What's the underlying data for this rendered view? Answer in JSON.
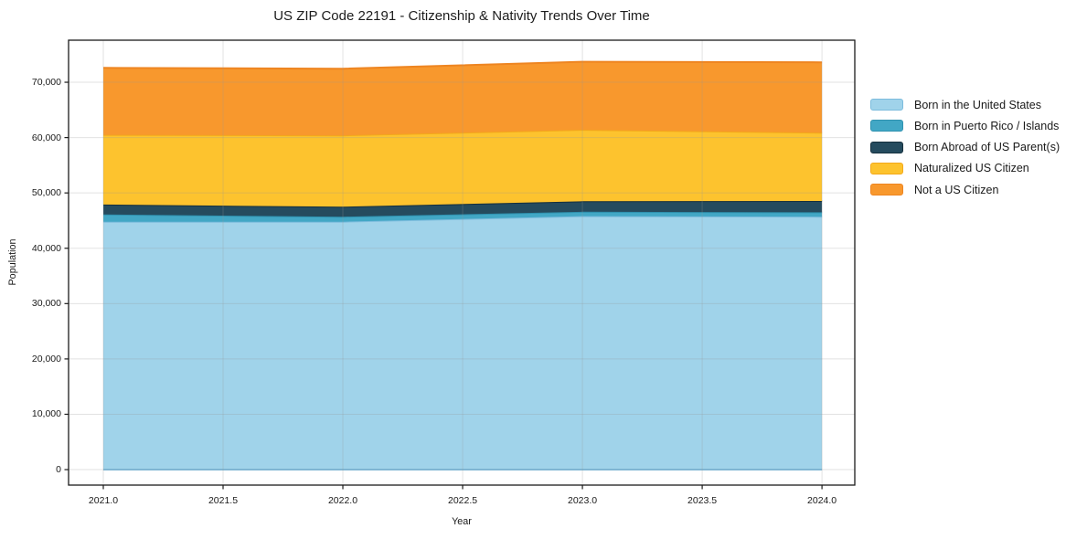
{
  "chart_data": {
    "type": "area",
    "stacked": true,
    "title": "US ZIP Code 22191 - Citizenship & Nativity Trends Over Time",
    "xlabel": "Year",
    "ylabel": "Population",
    "grid": true,
    "legend_position": "right-outside",
    "x": [
      2021,
      2022,
      2023,
      2024
    ],
    "xlim": [
      2020.855,
      2024.137
    ],
    "ylim": [
      -2800,
      77600
    ],
    "xticks": {
      "values": [
        2021.0,
        2021.5,
        2022.0,
        2022.5,
        2023.0,
        2023.5,
        2024.0
      ],
      "labels": [
        "2021.0",
        "2021.5",
        "2022.0",
        "2022.5",
        "2023.0",
        "2023.5",
        "2024.0"
      ]
    },
    "yticks": {
      "values": [
        0,
        10000,
        20000,
        30000,
        40000,
        50000,
        60000,
        70000
      ],
      "labels": [
        "0",
        "10,000",
        "20,000",
        "30,000",
        "40,000",
        "50,000",
        "60,000",
        "70,000"
      ]
    },
    "series": [
      {
        "name": "Born in the United States",
        "color": "#a0d3ea",
        "edge": "#7cbcdd",
        "values": [
          44800,
          44800,
          45800,
          45700
        ]
      },
      {
        "name": "Born in Puerto Rico / Islands",
        "color": "#42a7c5",
        "edge": "#2f92b0",
        "values": [
          1300,
          900,
          800,
          800
        ]
      },
      {
        "name": "Born Abroad of US Parent(s)",
        "color": "#254b5e",
        "edge": "#152f3d",
        "values": [
          1800,
          1800,
          1900,
          2050
        ]
      },
      {
        "name": "Naturalized US Citizen",
        "color": "#fdc32e",
        "edge": "#f3a91a",
        "values": [
          12600,
          12900,
          12900,
          12350
        ]
      },
      {
        "name": "Not a US Citizen",
        "color": "#f8982d",
        "edge": "#ee8521",
        "values": [
          12100,
          12050,
          12300,
          12700
        ]
      }
    ],
    "colors": {
      "grid": "rgba(150,150,150,0.28)",
      "spine": "#1b1b1b",
      "text": "#1a1a1a",
      "background": "#ffffff"
    }
  }
}
